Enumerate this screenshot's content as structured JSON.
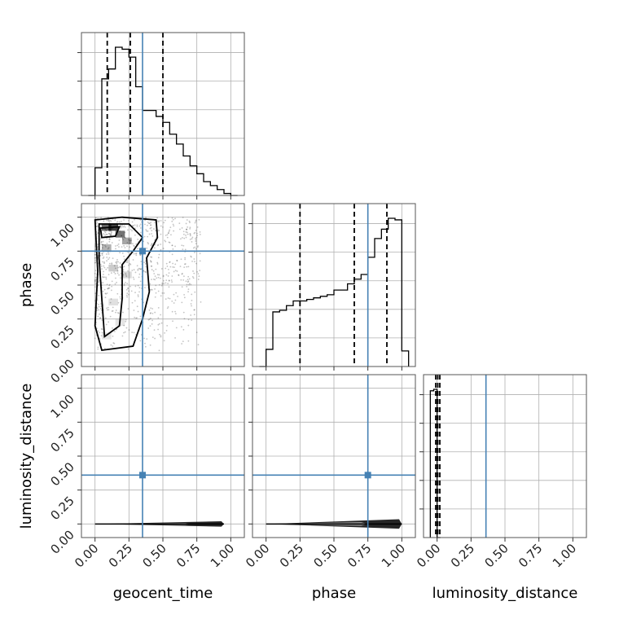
{
  "chart_data": {
    "type": "corner",
    "parameters": [
      "geocent_time",
      "phase",
      "luminosity_distance"
    ],
    "axis_limits": {
      "geocent_time": [
        -0.1,
        1.1
      ],
      "phase": [
        -0.1,
        1.1
      ],
      "luminosity_distance": [
        -0.1,
        1.1
      ]
    },
    "tick_labels": [
      "0.00",
      "0.25",
      "0.50",
      "0.75",
      "1.00"
    ],
    "truths": {
      "geocent_time": 0.35,
      "phase": 0.75,
      "luminosity_distance": 0.36
    },
    "truth_color": "#4682b4",
    "quantiles": {
      "geocent_time": [
        0.09,
        0.26,
        0.5
      ],
      "phase": [
        0.25,
        0.65,
        0.89
      ],
      "luminosity_distance": [
        -0.01,
        0.005,
        0.02
      ]
    },
    "grid": true,
    "histograms": {
      "geocent_time": {
        "edges": [
          -0.05,
          0.0,
          0.05,
          0.1,
          0.15,
          0.2,
          0.25,
          0.3,
          0.35,
          0.4,
          0.45,
          0.5,
          0.55,
          0.6,
          0.65,
          0.7,
          0.75,
          0.8,
          0.85,
          0.9,
          0.95,
          1.0,
          1.05
        ],
        "counts": [
          0,
          0.14,
          0.59,
          0.64,
          0.75,
          0.74,
          0.7,
          0.55,
          0.43,
          0.43,
          0.4,
          0.37,
          0.31,
          0.26,
          0.2,
          0.15,
          0.11,
          0.07,
          0.05,
          0.03,
          0.01,
          0.0
        ]
      },
      "phase": {
        "edges": [
          -0.05,
          0.0,
          0.05,
          0.1,
          0.15,
          0.2,
          0.25,
          0.3,
          0.35,
          0.4,
          0.45,
          0.5,
          0.55,
          0.6,
          0.65,
          0.7,
          0.75,
          0.8,
          0.85,
          0.9,
          0.95,
          1.0,
          1.05
        ],
        "counts": [
          0,
          0.11,
          0.35,
          0.36,
          0.39,
          0.42,
          0.42,
          0.43,
          0.44,
          0.45,
          0.46,
          0.49,
          0.49,
          0.53,
          0.56,
          0.59,
          0.7,
          0.82,
          0.88,
          0.95,
          0.94,
          0.1
        ]
      },
      "luminosity_distance": {
        "edges": [
          -0.05,
          -0.025,
          0.0,
          0.025
        ],
        "counts": [
          0.99,
          1.0,
          0.0
        ]
      }
    },
    "samples_2d": {
      "geocent_time_vs_phase": {
        "x_range": [
          0.0,
          0.72
        ],
        "y_range": [
          0.0,
          1.0
        ]
      },
      "geocent_time_vs_luminosity_distance": {
        "x_range": [
          0.0,
          0.95
        ],
        "y_range": [
          -0.02,
          0.02
        ]
      },
      "phase_vs_luminosity_distance": {
        "x_range": [
          0.0,
          1.0
        ],
        "y_range": [
          -0.03,
          0.03
        ]
      }
    }
  }
}
